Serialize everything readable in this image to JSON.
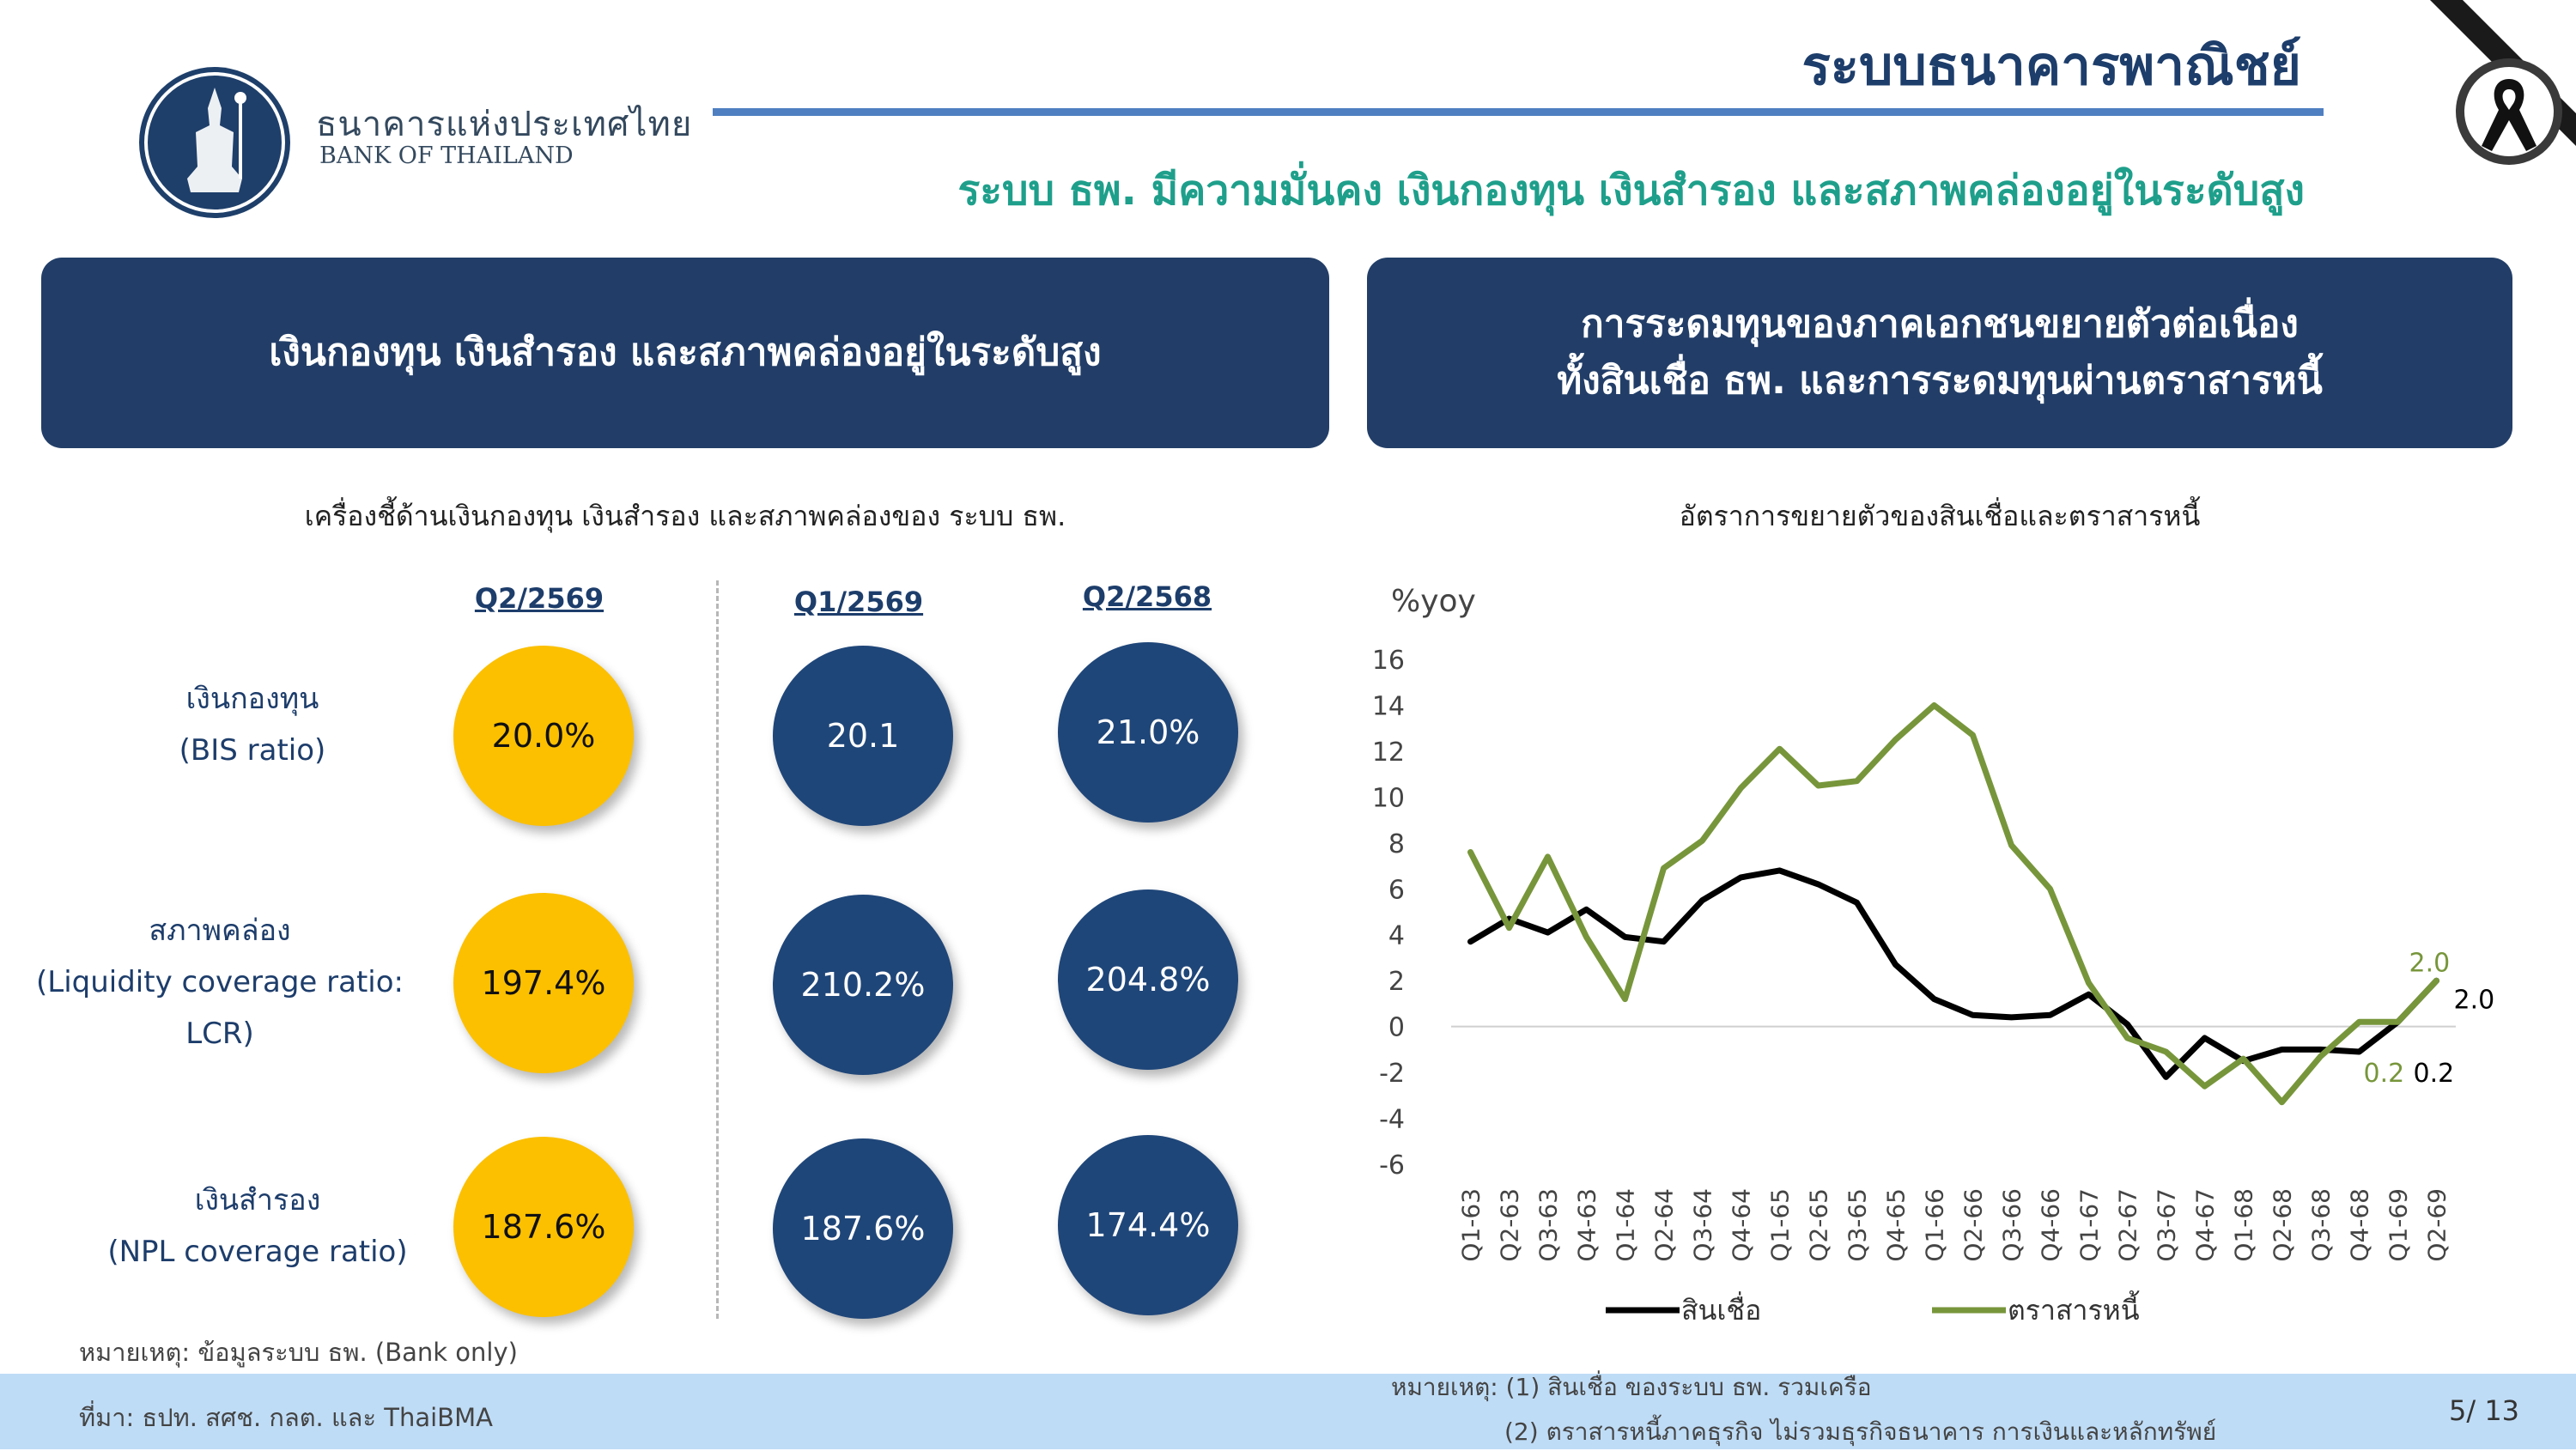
{
  "header": {
    "org_th": "ธนาคารแห่งประเทศไทย",
    "org_en": "BANK OF THAILAND",
    "page_title": "ระบบธนาคารพาณิชย์",
    "subtitle": "ระบบ ธพ. มีความมั่นคง เงินกองทุน เงินสำรอง และสภาพคล่องอยู่ในระดับสูง"
  },
  "banners": {
    "left": "เงินกองทุน เงินสำรอง และสภาพคล่องอยู่ในระดับสูง",
    "right_line1": "การระดมทุนของภาคเอกชนขยายตัวต่อเนื่อง",
    "right_line2": "ทั้งสินเชื่อ ธพ. และการระดมทุนผ่านตราสารหนี้"
  },
  "indicators": {
    "caption": "เครื่องชี้ด้านเงินกองทุน เงินสำรอง และสภาพคล่องของ ระบบ ธพ.",
    "columns": [
      "Q2/2569",
      "Q1/2569",
      "Q2/2568"
    ],
    "rows": [
      {
        "label_lines": [
          "เงินกองทุน",
          "(BIS ratio)"
        ],
        "values": [
          "20.0%",
          "20.1",
          "21.0%"
        ]
      },
      {
        "label_lines": [
          "สภาพคล่อง",
          "(Liquidity coverage ratio:",
          "LCR)"
        ],
        "values": [
          "197.4%",
          "210.2%",
          "204.8%"
        ]
      },
      {
        "label_lines": [
          "เงินสำรอง",
          "(NPL coverage ratio)"
        ],
        "values": [
          "187.6%",
          "187.6%",
          "174.4%"
        ]
      }
    ],
    "note": "หมายเหตุ: ข้อมูลระบบ ธพ. (Bank only)"
  },
  "colors": {
    "navy": "#223e68",
    "gold": "#fcc000",
    "teal": "#1e9f8b",
    "loan_line": "#000000",
    "bond_line": "#77963b"
  },
  "chart_data": {
    "type": "line",
    "title": "อัตราการขยายตัวของสินเชื่อและตราสารหนี้",
    "ylabel": "%yoy",
    "xlabel": "",
    "ylim": [
      -6,
      16
    ],
    "yticks": [
      16,
      14,
      12,
      10,
      8,
      6,
      4,
      2,
      0,
      -2,
      -4,
      -6
    ],
    "categories": [
      "Q1-63",
      "Q2-63",
      "Q3-63",
      "Q4-63",
      "Q1-64",
      "Q2-64",
      "Q3-64",
      "Q4-64",
      "Q1-65",
      "Q2-65",
      "Q3-65",
      "Q4-65",
      "Q1-66",
      "Q2-66",
      "Q3-66",
      "Q4-66",
      "Q1-67",
      "Q2-67",
      "Q3-67",
      "Q4-67",
      "Q1-68",
      "Q2-68",
      "Q3-68",
      "Q4-68",
      "Q1-69",
      "Q2-69"
    ],
    "series": [
      {
        "name": "สินเชื่อ",
        "color": "#000000",
        "values": [
          3.7,
          4.7,
          4.1,
          5.1,
          3.9,
          3.7,
          5.5,
          6.5,
          6.8,
          6.2,
          5.4,
          2.7,
          1.2,
          0.5,
          0.4,
          0.5,
          1.4,
          0.1,
          -2.2,
          -0.5,
          -1.5,
          -1.0,
          -1.0,
          -1.1,
          0.2,
          2.0
        ]
      },
      {
        "name": "ตราสารหนี้",
        "color": "#77963b",
        "values": [
          7.6,
          4.3,
          7.4,
          3.9,
          1.2,
          6.9,
          8.1,
          10.4,
          12.1,
          10.5,
          10.7,
          12.5,
          14.0,
          12.7,
          7.9,
          6.0,
          1.9,
          -0.5,
          -1.1,
          -2.6,
          -1.4,
          -3.3,
          -1.3,
          0.2,
          0.2,
          2.0
        ]
      }
    ],
    "end_labels": {
      "loan_last": "2.0",
      "loan_prev": "0.2",
      "bond_last": "2.0",
      "bond_prev": "0.2"
    },
    "grid": false,
    "legend": "bottom"
  },
  "footer": {
    "source": "ที่มา: ธปท. สศช. กลต. และ ThaiBMA",
    "note_right_1": "หมายเหตุ: (1) สินเชื่อ ของระบบ ธพ. รวมเครือ",
    "note_right_2": "(2) ตราสารหนี้ภาคธุรกิจ ไม่รวมธุรกิจธนาคาร การเงินและหลักทรัพย์",
    "page": "5/ 13"
  }
}
